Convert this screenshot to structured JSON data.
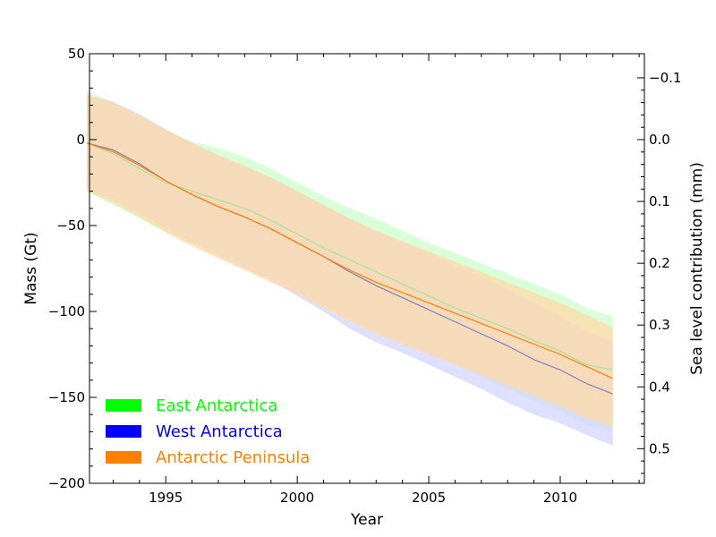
{
  "chart_data": {
    "type": "line",
    "xlabel": "Year",
    "ylabel": "Mass (Gt)",
    "y2label": "Sea level contribution (mm)",
    "xlim": [
      1992.1,
      2013.2
    ],
    "ylim": [
      -200,
      50
    ],
    "x_ticks": [
      1995,
      2000,
      2005,
      2010
    ],
    "y_ticks": [
      50,
      0,
      -50,
      -100,
      -150,
      -200
    ],
    "y2_ticks": [
      -0.1,
      0.0,
      0.1,
      0.2,
      0.3,
      0.4,
      0.5
    ],
    "y2_per_gt": -0.00278,
    "grid": false,
    "legend_position": "lower-left",
    "x_tick_labels": [
      "1995",
      "2000",
      "2005",
      "2010"
    ],
    "y_tick_labels": [
      "50",
      "0",
      "−50",
      "−100",
      "−150",
      "−200"
    ],
    "y2_tick_labels": [
      "−0.1",
      "0.0",
      "0.1",
      "0.2",
      "0.3",
      "0.4",
      "0.5"
    ],
    "x": [
      1992,
      1993,
      1994,
      1995,
      1996,
      1997,
      1998,
      1999,
      2000,
      2001,
      2002,
      2003,
      2004,
      2005,
      2006,
      2007,
      2008,
      2009,
      2010,
      2011,
      2012
    ],
    "series": [
      {
        "name": "East Antarctica",
        "color": "#00ff00",
        "line_color": "#a6e39a",
        "band_color": "#ccffcc",
        "values": [
          -2,
          -8,
          -17,
          -25,
          -30,
          -35,
          -40,
          -47,
          -55,
          -63,
          -70,
          -77,
          -84,
          -91,
          -98,
          -104,
          -110,
          -117,
          -123,
          -131,
          -134
        ],
        "lower": [
          -30,
          -38,
          -46,
          -54,
          -60,
          -66,
          -72,
          -79,
          -87,
          -96,
          -103,
          -110,
          -117,
          -124,
          -131,
          -138,
          -145,
          -152,
          -158,
          -166,
          -170
        ],
        "upper": [
          28,
          22,
          13,
          5,
          -1,
          -5,
          -10,
          -17,
          -25,
          -33,
          -40,
          -46,
          -53,
          -60,
          -66,
          -72,
          -78,
          -84,
          -90,
          -98,
          -103
        ]
      },
      {
        "name": "West Antarctica",
        "color": "#0000ff",
        "line_color": "#8080c0",
        "band_color": "#d4d4ff",
        "values": [
          -2,
          -6,
          -14,
          -24,
          -32,
          -39,
          -45,
          -52,
          -60,
          -68,
          -77,
          -85,
          -92,
          -99,
          -106,
          -113,
          -120,
          -128,
          -134,
          -142,
          -148
        ],
        "lower": [
          -28,
          -35,
          -43,
          -52,
          -60,
          -68,
          -75,
          -82,
          -91,
          -100,
          -110,
          -118,
          -124,
          -131,
          -138,
          -145,
          -153,
          -160,
          -165,
          -172,
          -178
        ],
        "upper": [
          26,
          22,
          15,
          6,
          -2,
          -9,
          -16,
          -22,
          -30,
          -38,
          -46,
          -53,
          -60,
          -66,
          -73,
          -80,
          -87,
          -95,
          -103,
          -112,
          -118
        ]
      },
      {
        "name": "Antarctic Peninsula",
        "color": "#ff7f00",
        "line_color": "#ff7f00",
        "band_color": "#ffd9a6",
        "values": [
          -2,
          -7,
          -15,
          -24,
          -32,
          -39,
          -45,
          -52,
          -60,
          -68,
          -76,
          -83,
          -89,
          -95,
          -101,
          -107,
          -113,
          -119,
          -125,
          -132,
          -139
        ],
        "lower": [
          -30,
          -37,
          -45,
          -54,
          -62,
          -69,
          -76,
          -83,
          -90,
          -98,
          -106,
          -113,
          -119,
          -125,
          -131,
          -137,
          -143,
          -149,
          -155,
          -162,
          -167
        ],
        "upper": [
          26,
          22,
          14,
          6,
          -2,
          -9,
          -15,
          -22,
          -30,
          -38,
          -46,
          -53,
          -59,
          -65,
          -71,
          -77,
          -83,
          -89,
          -95,
          -102,
          -109
        ]
      }
    ]
  }
}
